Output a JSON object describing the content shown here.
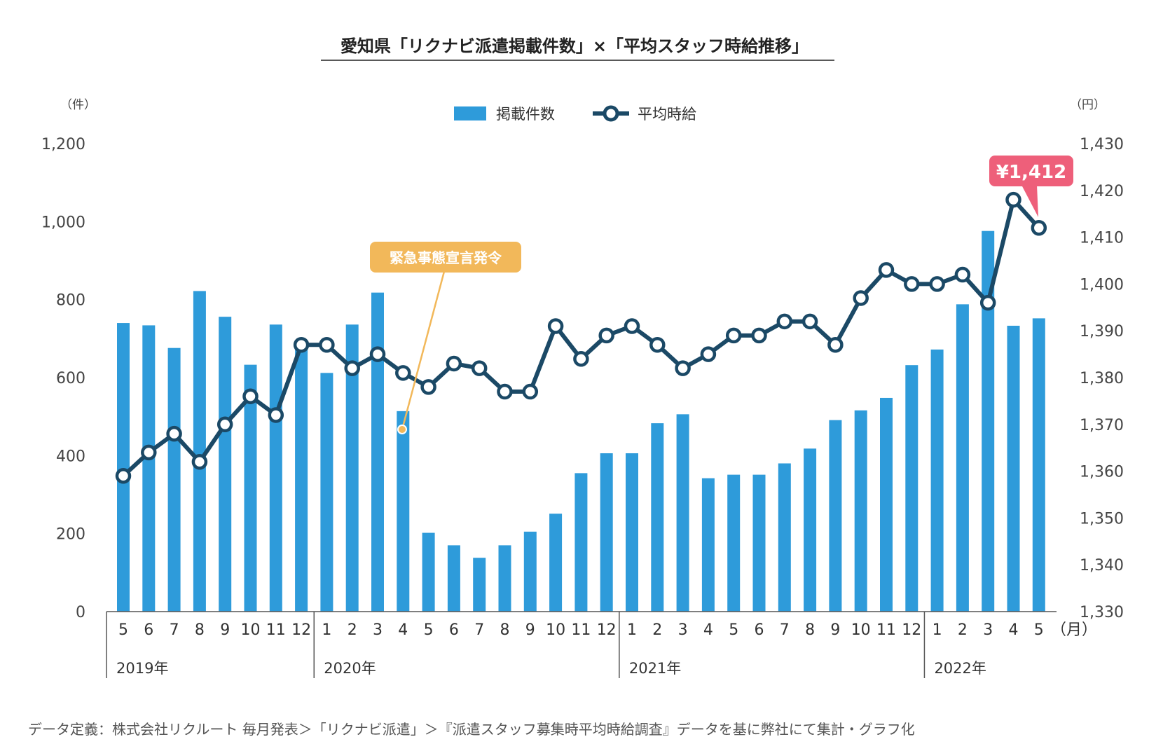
{
  "title": "愛知県「リクナビ派遣掲載件数」×「平均スタッフ時給推移」",
  "left_axis_unit": "（件）",
  "right_axis_unit": "（円）",
  "month_unit": "（月）",
  "footnote": "データ定義：株式会社リクルート 毎月発表＞「リクナビ派遣」＞『派遣スタッフ募集時平均時給調査』データを基に弊社にて集計・グラフ化",
  "annotations": {
    "emergency_label": "緊急事態宣言発令",
    "latest_price_label": "¥1,412"
  },
  "colors": {
    "bar": "#2E9BDA",
    "line": "#1B4966",
    "emergency": "#F2B85A",
    "price_callout": "#EE5F7A"
  },
  "chart_data": {
    "type": "bar+line",
    "categories": [
      "5",
      "6",
      "7",
      "8",
      "9",
      "10",
      "11",
      "12",
      "1",
      "2",
      "3",
      "4",
      "5",
      "6",
      "7",
      "8",
      "9",
      "10",
      "11",
      "12",
      "1",
      "2",
      "3",
      "4",
      "5",
      "6",
      "7",
      "8",
      "9",
      "10",
      "11",
      "12",
      "1",
      "2",
      "3",
      "4",
      "5"
    ],
    "years": [
      {
        "label": "2019年",
        "start_index": 0
      },
      {
        "label": "2020年",
        "start_index": 8
      },
      {
        "label": "2021年",
        "start_index": 20
      },
      {
        "label": "2022年",
        "start_index": 32
      }
    ],
    "series": [
      {
        "name": "掲載件数",
        "type": "bar",
        "axis": "left",
        "values": [
          740,
          734,
          676,
          822,
          756,
          633,
          736,
          680,
          612,
          736,
          818,
          514,
          202,
          170,
          138,
          170,
          205,
          251,
          355,
          406,
          406,
          483,
          506,
          342,
          351,
          351,
          380,
          418,
          491,
          516,
          548,
          632,
          672,
          788,
          976,
          733,
          752
        ]
      },
      {
        "name": "平均時給",
        "type": "line",
        "axis": "right",
        "values": [
          1359,
          1364,
          1368,
          1362,
          1370,
          1376,
          1372,
          1387,
          1387,
          1382,
          1385,
          1381,
          1378,
          1383,
          1382,
          1377,
          1377,
          1391,
          1384,
          1389,
          1391,
          1387,
          1382,
          1385,
          1389,
          1389,
          1392,
          1392,
          1387,
          1397,
          1403,
          1400,
          1400,
          1402,
          1396,
          1418,
          1412
        ]
      }
    ],
    "left_axis": {
      "min": 0,
      "max": 1200,
      "ticks": [
        "0",
        "200",
        "400",
        "600",
        "800",
        "1,000",
        "1,200"
      ]
    },
    "right_axis": {
      "min": 1330,
      "max": 1430,
      "ticks": [
        "1,330",
        "1,340",
        "1,350",
        "1,360",
        "1,370",
        "1,380",
        "1,390",
        "1,400",
        "1,410",
        "1,420",
        "1,430"
      ]
    },
    "legend_position": "top-center",
    "grid": false
  }
}
